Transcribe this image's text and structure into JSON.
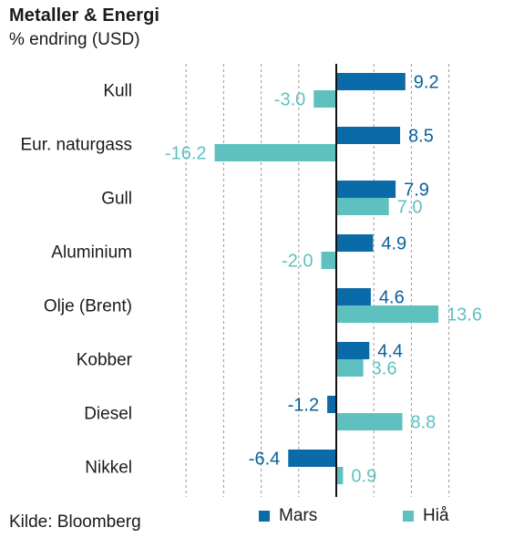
{
  "chart_data": {
    "type": "bar",
    "orientation": "horizontal",
    "title": "Metaller & Energi",
    "subtitle": "% endring (USD)",
    "categories": [
      "Kull",
      "Eur. naturgass",
      "Gull",
      "Aluminium",
      "Olje (Brent)",
      "Kobber",
      "Diesel",
      "Nikkel"
    ],
    "series": [
      {
        "name": "Mars",
        "color": "#0b6aa8",
        "values": [
          9.2,
          8.5,
          7.9,
          4.9,
          4.6,
          4.4,
          -1.2,
          -6.4
        ]
      },
      {
        "name": "Hiå",
        "color": "#5fc0c0",
        "values": [
          -3.0,
          -16.2,
          7.0,
          -2.0,
          13.6,
          3.6,
          8.8,
          0.9
        ]
      }
    ],
    "value_labels": {
      "Mars": [
        "9.2",
        "8.5",
        "7.9",
        "4.9",
        "4.6",
        "4.4",
        "-1.2",
        "-6.4"
      ],
      "Hiå": [
        "-3.0",
        "-16.2",
        "7.0",
        "-2.0",
        "13.6",
        "3.6",
        "8.8",
        "0.9"
      ]
    },
    "xlim": [
      -25,
      15
    ],
    "gridlines": [
      -20,
      -15,
      -10,
      -5,
      0,
      5,
      10,
      15
    ],
    "grid": true,
    "legend_position": "bottom-right",
    "source": "Kilde: Bloomberg"
  }
}
